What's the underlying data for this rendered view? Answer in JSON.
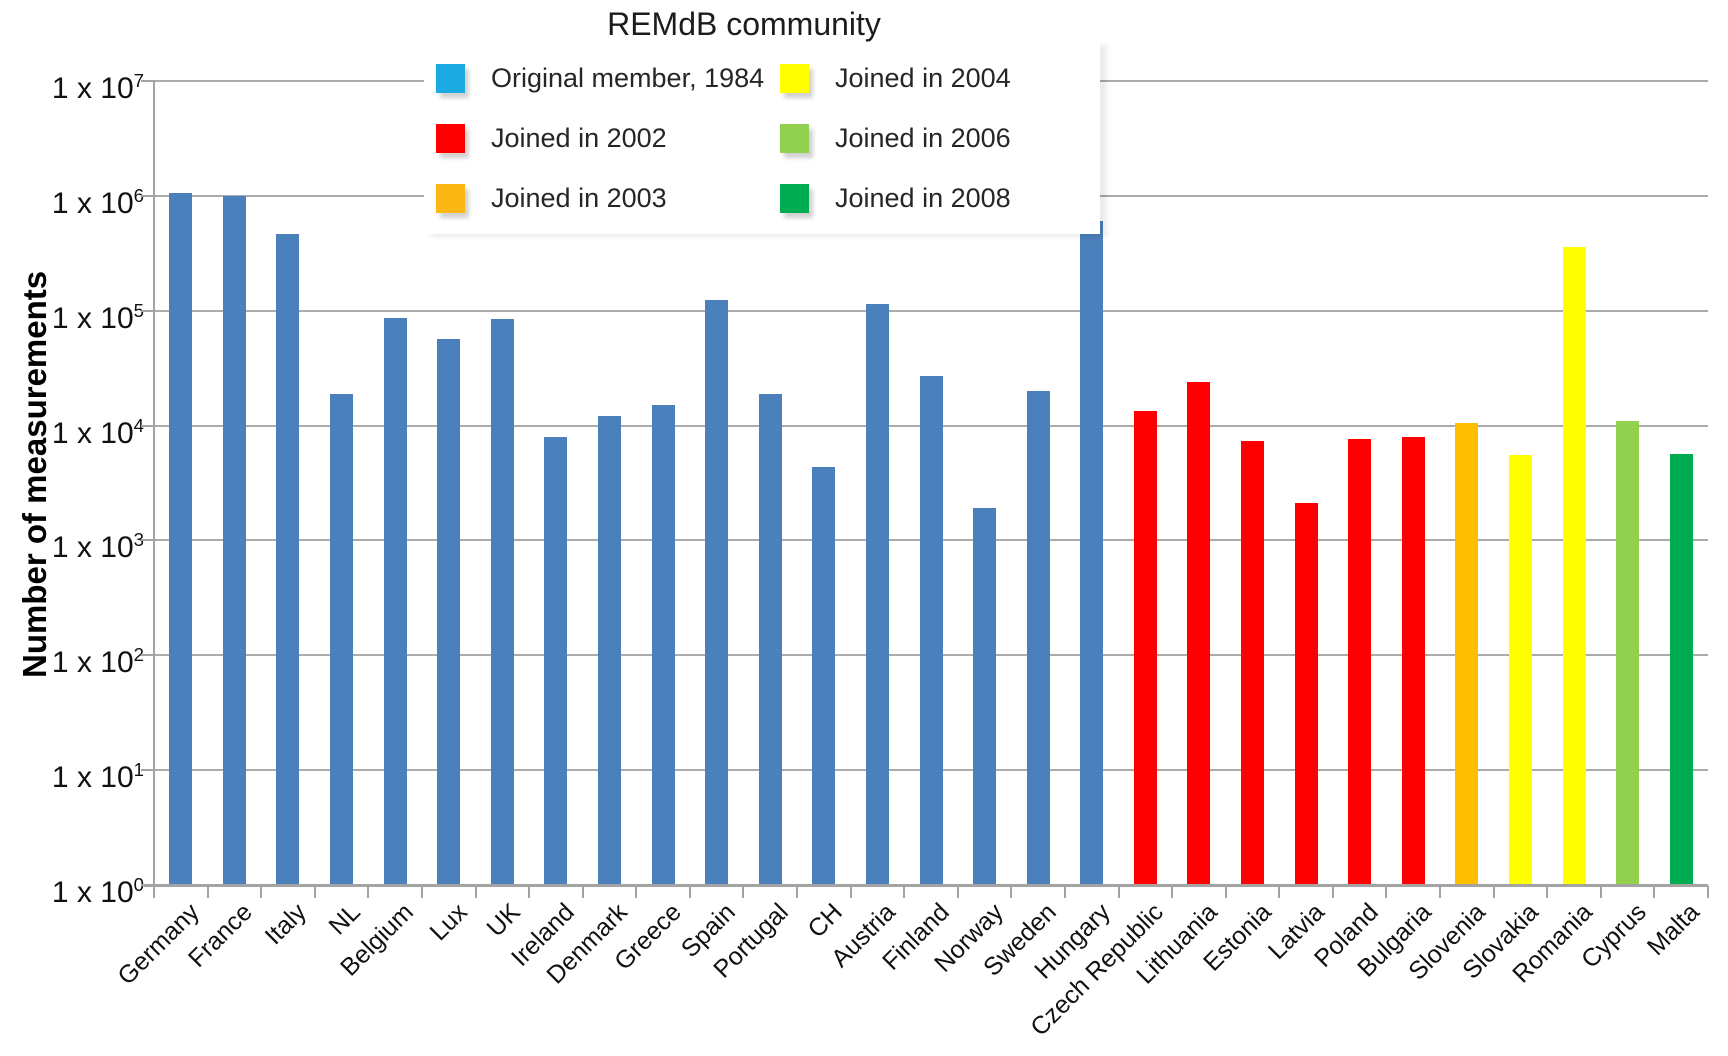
{
  "title": "REMdB community",
  "legend": {
    "entries": [
      {
        "label": "Original member, 1984",
        "group": "original_1984",
        "swatch_color": "#1BAAE1"
      },
      {
        "label": "Joined in 2002",
        "group": "2002",
        "swatch_color": "#FF0000"
      },
      {
        "label": "Joined in 2003",
        "group": "2003",
        "swatch_color": "#FBB713"
      },
      {
        "label": "Joined in 2004",
        "group": "2004",
        "swatch_color": "#FFFF00"
      },
      {
        "label": "Joined in 2006",
        "group": "2006",
        "swatch_color": "#92D050"
      },
      {
        "label": "Joined in 2008",
        "group": "2008",
        "swatch_color": "#00AC52"
      }
    ]
  },
  "chart_data": {
    "type": "bar",
    "title": "REMdB community",
    "xlabel": "",
    "ylabel": "Number of measurements",
    "yscale": "log",
    "ylim": [
      1,
      10000000
    ],
    "ytick_labels": [
      "1 x 10^7",
      "1 x 10^6",
      "1 x 10^5",
      "1 x 10^4",
      "1 x 10^3",
      "1 x 10^2",
      "1 x 10^1",
      "1 x 10^0"
    ],
    "grid": "horizontal",
    "legend_position": "top-center",
    "group_colors": {
      "original_1984": "#4C80BC",
      "2002": "#FF0000",
      "2003": "#FFBE00",
      "2004": "#FFFF00",
      "2006": "#92D050",
      "2008": "#00AC52"
    },
    "bars": [
      {
        "label": "Germany",
        "group": "original_1984",
        "value": 1050000
      },
      {
        "label": "France",
        "group": "original_1984",
        "value": 1000000
      },
      {
        "label": "Italy",
        "group": "original_1984",
        "value": 470000
      },
      {
        "label": "NL",
        "group": "original_1984",
        "value": 19000
      },
      {
        "label": "Belgium",
        "group": "original_1984",
        "value": 87000
      },
      {
        "label": "Lux",
        "group": "original_1984",
        "value": 57000
      },
      {
        "label": "UK",
        "group": "original_1984",
        "value": 85000
      },
      {
        "label": "Ireland",
        "group": "original_1984",
        "value": 8000
      },
      {
        "label": "Denmark",
        "group": "original_1984",
        "value": 12000
      },
      {
        "label": "Greece",
        "group": "original_1984",
        "value": 15000
      },
      {
        "label": "Spain",
        "group": "original_1984",
        "value": 125000
      },
      {
        "label": "Portugal",
        "group": "original_1984",
        "value": 19000
      },
      {
        "label": "CH",
        "group": "original_1984",
        "value": 4400
      },
      {
        "label": "Austria",
        "group": "original_1984",
        "value": 115000
      },
      {
        "label": "Finland",
        "group": "original_1984",
        "value": 27000
      },
      {
        "label": "Norway",
        "group": "original_1984",
        "value": 1900
      },
      {
        "label": "Sweden",
        "group": "original_1984",
        "value": 20000
      },
      {
        "label": "Hungary",
        "group": "original_1984",
        "value": 600000
      },
      {
        "label": "Czech Republic",
        "group": "2002",
        "value": 13500
      },
      {
        "label": "Lithuania",
        "group": "2002",
        "value": 24000
      },
      {
        "label": "Estonia",
        "group": "2002",
        "value": 7400
      },
      {
        "label": "Latvia",
        "group": "2002",
        "value": 2100
      },
      {
        "label": "Poland",
        "group": "2002",
        "value": 7600
      },
      {
        "label": "Bulgaria",
        "group": "2002",
        "value": 8000
      },
      {
        "label": "Slovenia",
        "group": "2003",
        "value": 10500
      },
      {
        "label": "Slovakia",
        "group": "2004",
        "value": 5500
      },
      {
        "label": "Romania",
        "group": "2004",
        "value": 360000
      },
      {
        "label": "Cyprus",
        "group": "2006",
        "value": 11000
      },
      {
        "label": "Malta",
        "group": "2008",
        "value": 5600
      }
    ]
  }
}
